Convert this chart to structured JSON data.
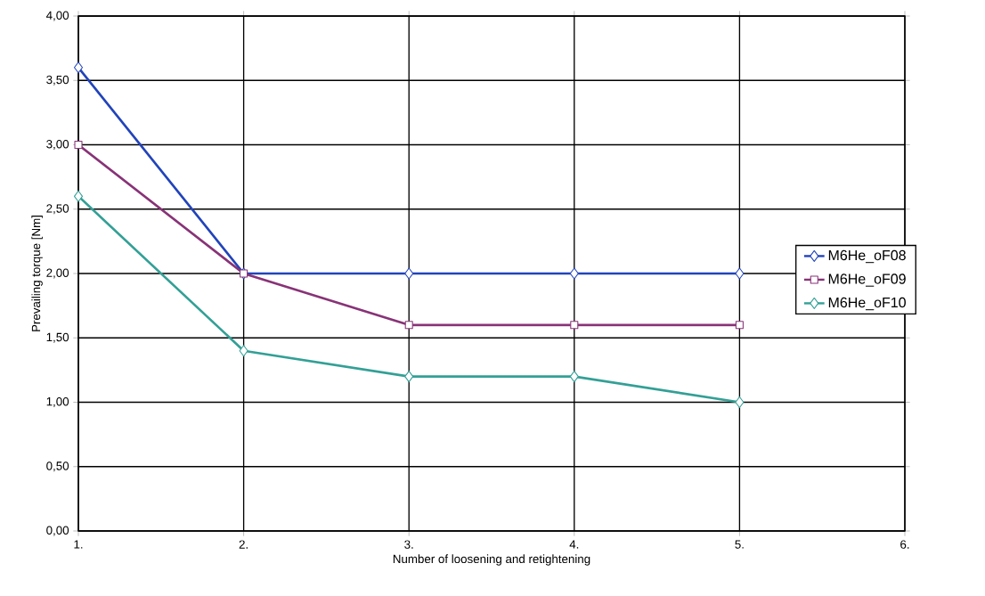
{
  "chart_data": {
    "type": "line",
    "xlabel": "Number of loosening and retightening",
    "ylabel": "Prevailing torque [Nm]",
    "categories": [
      "1.",
      "2.",
      "3.",
      "4.",
      "5.",
      "6."
    ],
    "series": [
      {
        "name": "M6He_oF08",
        "color": "#2244bb",
        "marker": "diamond",
        "values": [
          3.6,
          2.0,
          2.0,
          2.0,
          2.0,
          null
        ]
      },
      {
        "name": "M6He_oF09",
        "color": "#883377",
        "marker": "square",
        "values": [
          3.0,
          2.0,
          1.6,
          1.6,
          1.6,
          null
        ]
      },
      {
        "name": "M6He_oF10",
        "color": "#33a096",
        "marker": "diamond",
        "values": [
          2.6,
          1.4,
          1.2,
          1.2,
          1.0,
          null
        ]
      }
    ],
    "ylim": [
      0,
      4
    ],
    "yticks": [
      {
        "value": 0,
        "label": "0,00"
      },
      {
        "value": 0.5,
        "label": "0,50"
      },
      {
        "value": 1,
        "label": "1,00"
      },
      {
        "value": 1.5,
        "label": "1,50"
      },
      {
        "value": 2,
        "label": "2,00"
      },
      {
        "value": 2.5,
        "label": "2,50"
      },
      {
        "value": 3,
        "label": "3,00"
      },
      {
        "value": 3.5,
        "label": "3,50"
      },
      {
        "value": 4,
        "label": "4,00"
      }
    ],
    "grid": true,
    "legend": "right",
    "line_style": "solid"
  }
}
